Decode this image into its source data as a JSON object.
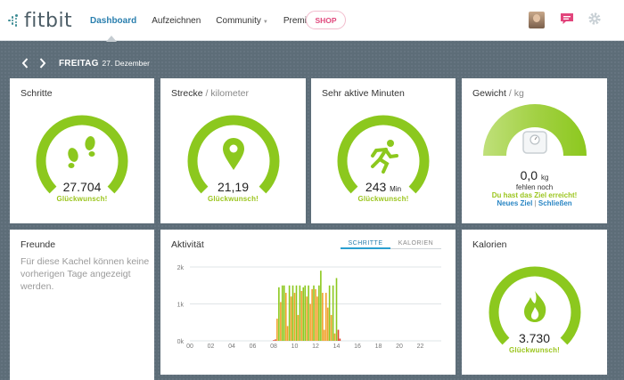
{
  "header": {
    "logo_text": "fitbit",
    "nav": [
      {
        "label": "Dashboard",
        "active": true
      },
      {
        "label": "Aufzeichnen",
        "active": false
      },
      {
        "label": "Community",
        "active": false
      },
      {
        "label": "Premium",
        "active": false
      }
    ],
    "shop_label": "SHOP",
    "icons": [
      "avatar",
      "messages-icon",
      "settings-gear-icon"
    ]
  },
  "date_bar": {
    "day": "FREITAG",
    "date": "27. Dezember"
  },
  "tiles": {
    "steps": {
      "title": "Schritte",
      "value": "27.704",
      "message": "Glückwunsch!",
      "progress": 1.0,
      "icon": "footprints-icon"
    },
    "distance": {
      "title": "Strecke",
      "unit": "/ kilometer",
      "value": "21,19",
      "message": "Glückwunsch!",
      "progress": 1.0,
      "icon": "location-pin-icon"
    },
    "active_minutes": {
      "title": "Sehr aktive Minuten",
      "value": "243",
      "value_unit": "Min",
      "message": "Glückwunsch!",
      "progress": 1.0,
      "icon": "running-man-icon"
    },
    "weight": {
      "title": "Gewicht",
      "unit": "/ kg",
      "value": "0,0",
      "value_unit": "kg",
      "missing": "fehlen noch",
      "reached": "Du hast das Ziel erreicht!",
      "link_new_goal": "Neues Ziel",
      "link_separator": "|",
      "link_close": "Schließen",
      "icon": "scale-icon"
    },
    "friends": {
      "title": "Freunde",
      "message": "Für diese Kachel können keine vorherigen Tage angezeigt werden."
    },
    "calories": {
      "title": "Kalorien",
      "value": "3.730",
      "message": "Glückwunsch!",
      "progress": 1.0,
      "icon": "flame-icon"
    }
  },
  "activity": {
    "title": "Aktivität",
    "tab_steps": "SCHRITTE",
    "tab_calories": "KALORIEN",
    "active_tab": "SCHRITTE"
  },
  "colors": {
    "accent_green": "#8cc81e",
    "track_gray": "#e7ecef",
    "bar_orange": "#f0a12a",
    "bar_red": "#e2452d",
    "link_blue": "#2a86c4"
  },
  "chart_data": {
    "type": "bar",
    "ylim": [
      0,
      2000
    ],
    "yticks": [
      "2k",
      "1k",
      "0k"
    ],
    "xticks": [
      "00",
      "02",
      "04",
      "06",
      "08",
      "10",
      "12",
      "14",
      "16",
      "18",
      "20",
      "22"
    ],
    "x_hours": [
      8.0,
      8.17,
      8.33,
      8.5,
      8.67,
      8.83,
      9.0,
      9.17,
      9.33,
      9.5,
      9.67,
      9.83,
      10.0,
      10.17,
      10.33,
      10.5,
      10.67,
      10.83,
      11.0,
      11.17,
      11.33,
      11.5,
      11.67,
      11.83,
      12.0,
      12.17,
      12.33,
      12.5,
      12.67,
      12.83,
      13.0,
      13.17,
      13.33,
      13.5,
      13.67,
      13.83,
      14.0,
      14.17,
      14.33
    ],
    "values": [
      20,
      40,
      600,
      1450,
      1050,
      1500,
      1500,
      1300,
      400,
      1500,
      1200,
      1500,
      1300,
      1500,
      700,
      1500,
      1350,
      1450,
      1500,
      1200,
      1500,
      1000,
      1400,
      1500,
      1400,
      1200,
      1500,
      1900,
      1300,
      300,
      1300,
      900,
      1500,
      700,
      1500,
      200,
      1700,
      300,
      60
    ],
    "series_color_keys": [
      "red",
      "red",
      "orange",
      "green",
      "orange",
      "green",
      "green",
      "orange",
      "orange",
      "green",
      "orange",
      "green",
      "orange",
      "green",
      "orange",
      "green",
      "orange",
      "green",
      "green",
      "orange",
      "green",
      "orange",
      "orange",
      "green",
      "orange",
      "orange",
      "green",
      "green",
      "orange",
      "orange",
      "orange",
      "orange",
      "green",
      "orange",
      "green",
      "orange",
      "green",
      "red",
      "red"
    ]
  }
}
